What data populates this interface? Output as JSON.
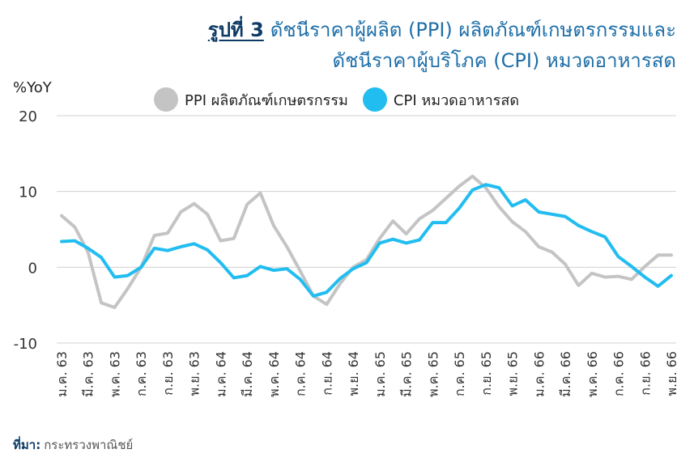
{
  "title": {
    "figure_label": "รูปที่ 3",
    "line1": "ดัชนีราคาผู้ผลิต (PPI) ผลิตภัณฑ์เกษตรกรรมและ",
    "line2": "ดัชนีราคาผู้บริโภค (CPI) หมวดอาหารสด"
  },
  "source": {
    "label": "ที่มา:",
    "text": "กระทรวงพาณิชย์"
  },
  "chart_data": {
    "type": "line",
    "ylabel": "%YoY",
    "ylim": [
      -10,
      20
    ],
    "yticks": [
      -10,
      0,
      10,
      20
    ],
    "grid": true,
    "legend_position": "top",
    "x_tick_labels": [
      "ม.ค. 63",
      "มี.ค. 63",
      "พ.ค. 63",
      "ก.ค. 63",
      "ก.ย. 63",
      "พ.ย. 63",
      "ม.ค. 64",
      "มี.ค. 64",
      "พ.ค. 64",
      "ก.ค. 64",
      "ก.ย. 64",
      "พ.ย. 64",
      "ม.ค. 65",
      "มี.ค. 65",
      "พ.ค. 65",
      "ก.ค. 65",
      "ก.ย. 65",
      "พ.ย. 65",
      "ม.ค. 66",
      "มี.ค. 66",
      "พ.ค. 66",
      "ก.ค. 66",
      "ก.ย. 66",
      "พ.ย. 66"
    ],
    "series": [
      {
        "name": "PPI ผลิตภัณฑ์เกษตรกรรม",
        "color": "#c4c4c4",
        "values": [
          6.8,
          5.3,
          2.0,
          -4.7,
          -5.3,
          -2.8,
          0.0,
          4.2,
          4.5,
          7.3,
          8.4,
          7.0,
          3.5,
          3.8,
          8.3,
          9.8,
          5.5,
          2.7,
          -0.5,
          -3.8,
          -4.9,
          -2.2,
          0.0,
          1.0,
          3.8,
          6.1,
          4.4,
          6.4,
          7.5,
          9.1,
          10.7,
          12.0,
          10.5,
          8.0,
          6.0,
          4.7,
          2.7,
          2.0,
          0.4,
          -2.4,
          -0.8,
          -1.3,
          -1.2,
          -1.6,
          0.1,
          1.6,
          1.6
        ]
      },
      {
        "name": "CPI หมวดอาหารสด",
        "color": "#22bdf0",
        "values": [
          3.4,
          3.5,
          2.5,
          1.3,
          -1.3,
          -1.1,
          0.0,
          2.5,
          2.2,
          2.7,
          3.1,
          2.3,
          0.6,
          -1.4,
          -1.1,
          0.1,
          -0.4,
          -0.2,
          -1.6,
          -3.8,
          -3.3,
          -1.5,
          -0.2,
          0.6,
          3.2,
          3.7,
          3.2,
          3.6,
          5.9,
          5.9,
          7.8,
          10.2,
          10.9,
          10.5,
          8.1,
          8.9,
          7.3,
          7.0,
          6.7,
          5.5,
          4.7,
          4.0,
          1.4,
          0.1,
          -1.3,
          -2.5,
          -1.1
        ]
      }
    ]
  }
}
